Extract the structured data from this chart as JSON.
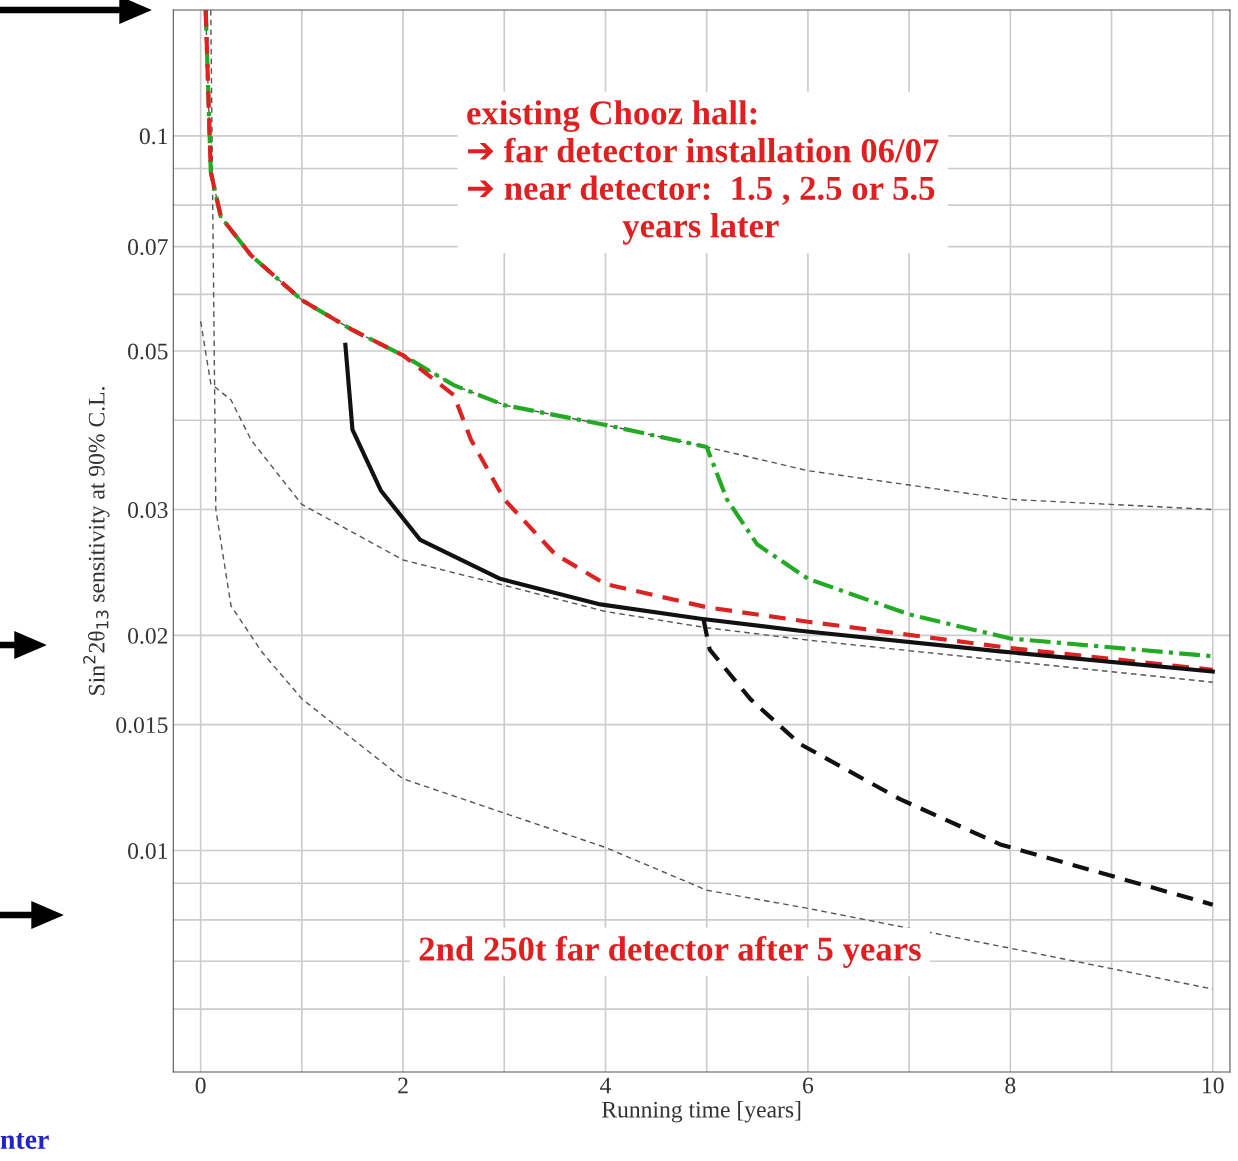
{
  "chart_data": {
    "type": "line",
    "xlabel": "Running time [years]",
    "ylabel": "Sin$^{2}$2θ$_{13}$ sensitivity at 90% C.L.",
    "log": "y",
    "grid": true,
    "legend": false,
    "marker": "none",
    "xlim": [
      -0.27,
      10.17
    ],
    "ylim": [
      0.0049,
      0.15
    ],
    "xticks": [
      0,
      {
        "value": 1,
        "label": null
      },
      2,
      {
        "value": 3,
        "label": null
      },
      4,
      {
        "value": 5,
        "label": null
      },
      6,
      {
        "value": 7,
        "label": null
      },
      8,
      {
        "value": 9,
        "label": null
      },
      10
    ],
    "yticks": [
      {
        "value": 0.006,
        "label": null
      },
      {
        "value": 0.007,
        "label": null
      },
      {
        "value": 0.008,
        "label": null
      },
      {
        "value": 0.009,
        "label": null
      },
      0.01,
      0.015,
      0.02,
      0.03,
      {
        "value": 0.04,
        "label": null
      },
      0.05,
      {
        "value": 0.06,
        "label": null
      },
      0.07,
      {
        "value": 0.08,
        "label": null
      },
      {
        "value": 0.09,
        "label": null
      },
      0.1
    ],
    "series": [
      {
        "color": "#555555",
        "line_style": "dotted",
        "x": [
          0.05,
          0.1,
          0.2,
          0.5,
          1,
          1.5,
          2,
          2.5,
          3,
          4,
          5,
          6,
          8,
          10
        ],
        "values": [
          0.15,
          0.089,
          0.077,
          0.068,
          0.0589,
          0.0535,
          0.0493,
          0.0448,
          0.042,
          0.0394,
          0.0367,
          0.034,
          0.031,
          0.03
        ]
      },
      {
        "color": "#555555",
        "line_style": "dotted",
        "x": [
          0.0,
          0.1,
          0.3,
          0.5,
          1,
          2,
          3,
          4,
          5,
          6,
          8,
          10
        ],
        "values": [
          0.055,
          0.045,
          0.0427,
          0.0375,
          0.0305,
          0.0255,
          0.0235,
          0.0216,
          0.0205,
          0.0197,
          0.0184,
          0.0172
        ]
      },
      {
        "color": "#555555",
        "line_style": "dotted",
        "x": [
          0.1,
          0.15,
          0.3,
          0.6,
          1,
          2,
          4,
          5,
          6,
          8,
          10
        ],
        "values": [
          0.15,
          0.03,
          0.022,
          0.019,
          0.0163,
          0.0126,
          0.0101,
          0.0088,
          0.0083,
          0.0073,
          0.0064
        ]
      },
      {
        "color": "#22aa22",
        "line_style": "dashdot",
        "x": [
          0.05,
          0.1,
          0.2,
          0.5,
          1,
          1.5,
          2,
          2.5,
          3,
          4,
          5,
          5.2,
          5.5,
          6,
          7,
          8,
          10
        ],
        "values": [
          0.15,
          0.089,
          0.077,
          0.068,
          0.0589,
          0.0535,
          0.0493,
          0.0448,
          0.042,
          0.0394,
          0.0367,
          0.031,
          0.0268,
          0.024,
          0.0214,
          0.0198,
          0.0187
        ]
      },
      {
        "color": "#dd2222",
        "line_style": "dashed",
        "x": [
          0.05,
          0.1,
          0.2,
          0.5,
          1,
          1.5,
          2,
          2.5,
          2.67,
          3,
          3.5,
          4,
          5,
          6,
          8,
          10
        ],
        "values": [
          0.15,
          0.089,
          0.077,
          0.068,
          0.0589,
          0.0535,
          0.0493,
          0.0434,
          0.0376,
          0.031,
          0.026,
          0.0236,
          0.0219,
          0.0209,
          0.0192,
          0.0179
        ]
      },
      {
        "color": "#111111",
        "line_style": "solid",
        "x": [
          1.43,
          1.5,
          1.78,
          2.17,
          2.96,
          3.95,
          4.94,
          5.92,
          7.9,
          10
        ],
        "values": [
          0.051,
          0.0388,
          0.0319,
          0.0272,
          0.024,
          0.0221,
          0.0211,
          0.0203,
          0.019,
          0.0178
        ]
      },
      {
        "color": "#111111",
        "line_style": "dashed",
        "x": [
          4.97,
          5.03,
          5.43,
          5.92,
          6.91,
          7.9,
          10
        ],
        "values": [
          0.021,
          0.0191,
          0.0163,
          0.0141,
          0.0118,
          0.0102,
          0.0084
        ]
      }
    ],
    "annotations": [
      "existing Chooz hall:\n➔ far detector installation 06/07\n➔ near detector:  1.5 , 2.5 or 5.5\n                  years later",
      "2nd 250t far detector after 5 years",
      "nter"
    ]
  }
}
